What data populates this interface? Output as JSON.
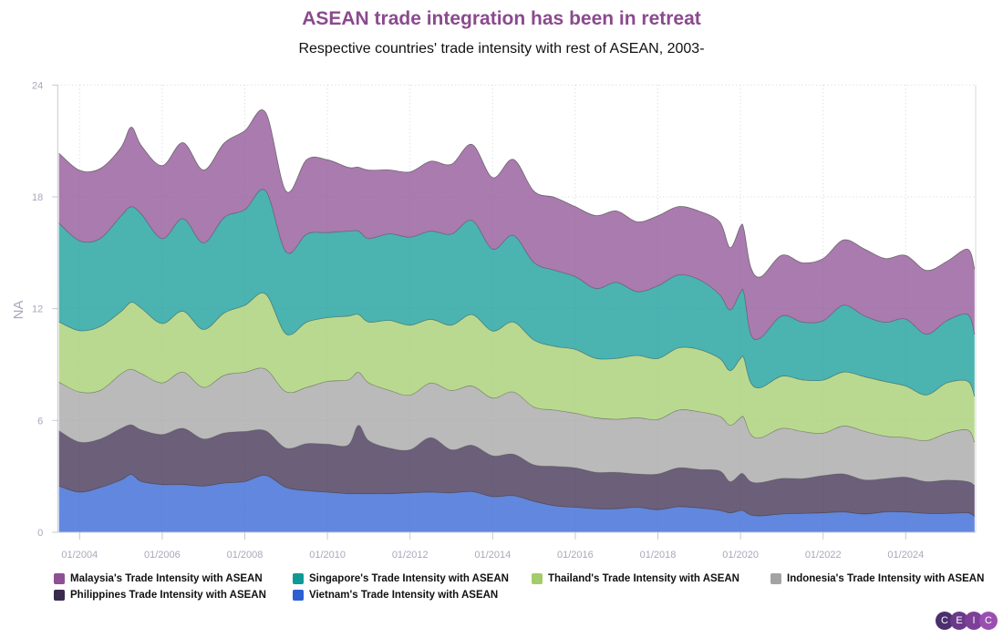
{
  "chart_data": {
    "type": "area",
    "stacked": true,
    "title": "ASEAN trade integration has been in retreat",
    "subtitle": "Respective countries' trade intensity with rest of ASEAN, 2003-",
    "ylabel": "NA",
    "ylim": [
      0,
      24
    ],
    "yticks": [
      "0",
      "6",
      "12",
      "18",
      "24"
    ],
    "xticks": [
      "01/2004",
      "01/2006",
      "01/2008",
      "01/2010",
      "01/2012",
      "01/2014",
      "01/2016",
      "01/2018",
      "01/2020",
      "01/2022",
      "01/2024"
    ],
    "grid": true,
    "legend_position": "bottom",
    "x": [
      "2003-07",
      "2004-01",
      "2004-07",
      "2005-01",
      "2005-04",
      "2005-07",
      "2006-01",
      "2006-07",
      "2007-01",
      "2007-07",
      "2008-01",
      "2008-07",
      "2009-01",
      "2009-07",
      "2010-01",
      "2010-07",
      "2010-10",
      "2011-01",
      "2011-07",
      "2012-01",
      "2012-07",
      "2013-01",
      "2013-07",
      "2014-01",
      "2014-07",
      "2015-01",
      "2015-07",
      "2016-01",
      "2016-07",
      "2017-01",
      "2017-07",
      "2018-01",
      "2018-07",
      "2019-01",
      "2019-07",
      "2019-10",
      "2020-01",
      "2020-02",
      "2020-04",
      "2020-07",
      "2021-01",
      "2021-07",
      "2022-01",
      "2022-07",
      "2023-01",
      "2023-07",
      "2024-01",
      "2024-07",
      "2025-01",
      "2025-07",
      "2025-09"
    ],
    "series": [
      {
        "name": "Vietnam's Trade Intensity with ASEAN",
        "color": "#2d5fd3",
        "values": [
          2.48,
          2.15,
          2.4,
          2.8,
          3.1,
          2.72,
          2.56,
          2.56,
          2.48,
          2.64,
          2.72,
          3.05,
          2.4,
          2.23,
          2.15,
          2.07,
          2.07,
          2.07,
          2.07,
          2.12,
          2.15,
          2.12,
          2.18,
          1.91,
          1.96,
          1.66,
          1.42,
          1.34,
          1.26,
          1.26,
          1.34,
          1.21,
          1.37,
          1.3,
          1.17,
          1.04,
          1.17,
          1.14,
          0.93,
          0.88,
          0.98,
          1.01,
          1.04,
          1.09,
          0.98,
          1.09,
          1.09,
          1.01,
          1.01,
          1.04,
          0.85
        ]
      },
      {
        "name": "Philippines Trade Intensity with ASEAN",
        "color": "#3a2a4e",
        "values": [
          2.97,
          2.69,
          2.61,
          2.77,
          2.67,
          2.77,
          2.69,
          3.02,
          2.53,
          2.69,
          2.69,
          2.4,
          2.12,
          2.53,
          2.58,
          2.61,
          3.67,
          2.85,
          2.45,
          2.31,
          2.93,
          2.31,
          2.49,
          2.2,
          2.23,
          1.96,
          2.12,
          2.12,
          1.96,
          1.96,
          1.79,
          1.92,
          2.09,
          2.07,
          2.12,
          1.68,
          1.96,
          1.96,
          1.79,
          1.79,
          1.91,
          1.87,
          2.0,
          2.04,
          1.83,
          1.79,
          1.87,
          1.71,
          1.79,
          1.68,
          1.66
        ]
      },
      {
        "name": "Indonesia's Trade Intensity with ASEAN",
        "color": "#a3a3a3",
        "values": [
          2.61,
          2.69,
          2.61,
          2.93,
          2.98,
          3.02,
          2.77,
          3.02,
          2.77,
          3.1,
          3.18,
          3.31,
          3.02,
          3.02,
          3.37,
          3.5,
          2.85,
          3.1,
          3.1,
          2.93,
          2.93,
          3.18,
          3.18,
          3.1,
          3.34,
          3.1,
          3.02,
          2.93,
          2.93,
          2.85,
          3.02,
          2.93,
          3.1,
          3.1,
          2.93,
          3.02,
          3.02,
          3.05,
          2.53,
          2.41,
          2.69,
          2.53,
          2.28,
          2.58,
          2.61,
          2.28,
          2.12,
          2.2,
          2.53,
          2.77,
          2.33
        ]
      },
      {
        "name": "Thailand's Trade Intensity with ASEAN",
        "color": "#a3cc6b",
        "values": [
          3.23,
          3.29,
          3.42,
          3.34,
          3.59,
          3.5,
          3.18,
          3.26,
          3.1,
          3.34,
          3.59,
          4.03,
          3.1,
          3.5,
          3.42,
          3.42,
          3.1,
          3.26,
          3.75,
          3.75,
          3.42,
          3.5,
          3.83,
          3.59,
          3.75,
          3.59,
          3.42,
          3.42,
          3.18,
          3.26,
          3.34,
          3.26,
          3.34,
          3.34,
          3.1,
          2.93,
          3.18,
          3.18,
          2.77,
          2.69,
          2.8,
          2.77,
          2.85,
          2.89,
          2.93,
          2.93,
          2.77,
          2.45,
          2.69,
          2.61,
          2.45
        ]
      },
      {
        "name": "Singapore's Trade Intensity with ASEAN",
        "color": "#0f9996",
        "values": [
          5.3,
          4.82,
          4.73,
          5.13,
          5.13,
          5.05,
          4.56,
          4.97,
          4.65,
          5.13,
          5.13,
          5.54,
          4.4,
          4.73,
          4.56,
          4.56,
          4.48,
          4.48,
          4.65,
          4.73,
          4.73,
          4.89,
          5.05,
          4.4,
          4.65,
          4.16,
          4.08,
          3.91,
          3.75,
          4.08,
          3.42,
          3.91,
          3.91,
          3.75,
          3.42,
          3.26,
          3.55,
          3.5,
          2.61,
          2.69,
          3.23,
          3.1,
          3.18,
          3.59,
          3.26,
          3.18,
          3.59,
          3.26,
          3.34,
          3.59,
          3.34
        ]
      },
      {
        "name": "Malaysia's Trade Intensity with ASEAN",
        "color": "#8e4f94",
        "values": [
          3.75,
          3.78,
          3.75,
          3.67,
          4.27,
          3.67,
          3.91,
          4.08,
          3.91,
          3.99,
          4.24,
          4.21,
          3.26,
          3.99,
          3.91,
          3.42,
          3.42,
          3.67,
          3.42,
          3.5,
          3.75,
          3.75,
          4.08,
          3.83,
          4.08,
          3.83,
          3.91,
          3.75,
          3.91,
          3.83,
          3.75,
          3.75,
          3.67,
          3.67,
          3.91,
          3.34,
          3.54,
          3.42,
          3.59,
          3.26,
          3.26,
          3.18,
          3.34,
          3.5,
          3.59,
          3.42,
          3.42,
          3.42,
          3.18,
          3.5,
          3.5
        ]
      }
    ],
    "legend_order": [
      5,
      4,
      3,
      2,
      1,
      0
    ]
  },
  "logo": {
    "letters": [
      "C",
      "E",
      "I",
      "C"
    ],
    "colors": [
      "#4b2f6e",
      "#6a3a8a",
      "#7d3f97",
      "#9a4fb0"
    ]
  }
}
